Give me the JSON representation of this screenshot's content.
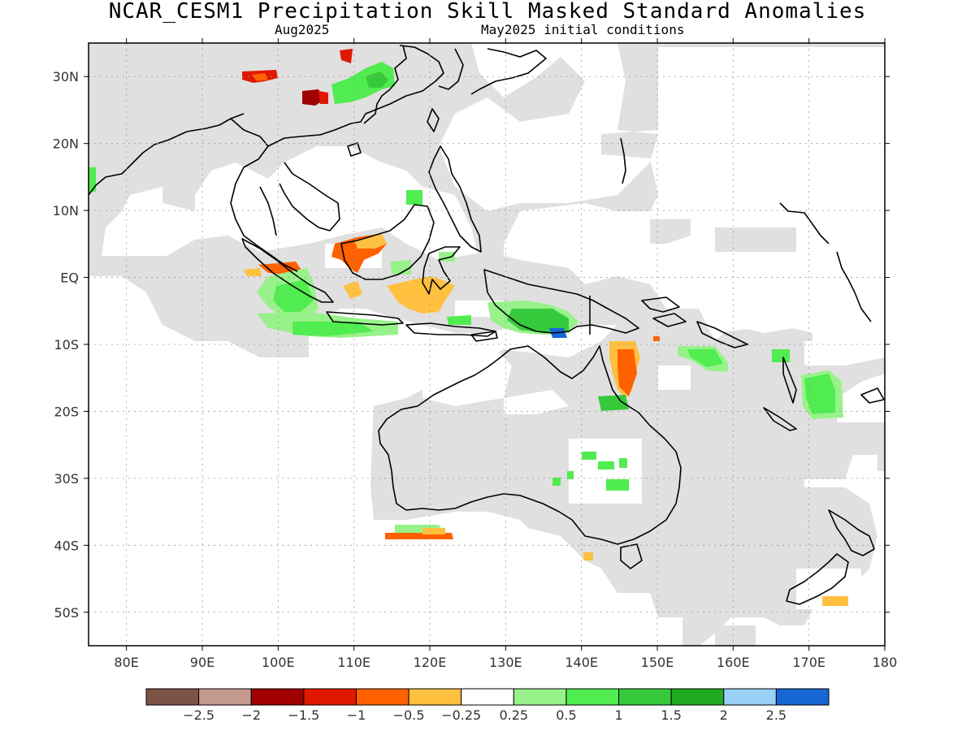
{
  "title": "NCAR_CESM1 Precipitation Skill Masked Standard Anomalies",
  "subtitle_left": "Aug2025",
  "subtitle_right": "May2025 initial conditions",
  "map": {
    "lon_range": [
      75,
      180
    ],
    "lat_range": [
      -55,
      35
    ],
    "lat_ticks": [
      "30N",
      "20N",
      "10N",
      "EQ",
      "10S",
      "20S",
      "30S",
      "40S",
      "50S"
    ],
    "lon_ticks": [
      "80E",
      "90E",
      "100E",
      "110E",
      "120E",
      "130E",
      "140E",
      "150E",
      "160E",
      "170E",
      "180"
    ],
    "grid": true
  },
  "colors": {
    "masked_gray": "#e0e0e0",
    "coast": "#000000",
    "scale": [
      "#7b5447",
      "#c49a8e",
      "#a00000",
      "#e01800",
      "#ff6000",
      "#ffc040",
      "#ffffff",
      "#98f28a",
      "#50ec50",
      "#36c93c",
      "#22aa22",
      "#98d0f8",
      "#1666d6"
    ]
  },
  "colorbar": {
    "labels": [
      "-2.5",
      "-2",
      "-1.5",
      "-1",
      "-0.5",
      "-0.25",
      "0.25",
      "0.5",
      "1",
      "1.5",
      "2",
      "2.5"
    ]
  }
}
